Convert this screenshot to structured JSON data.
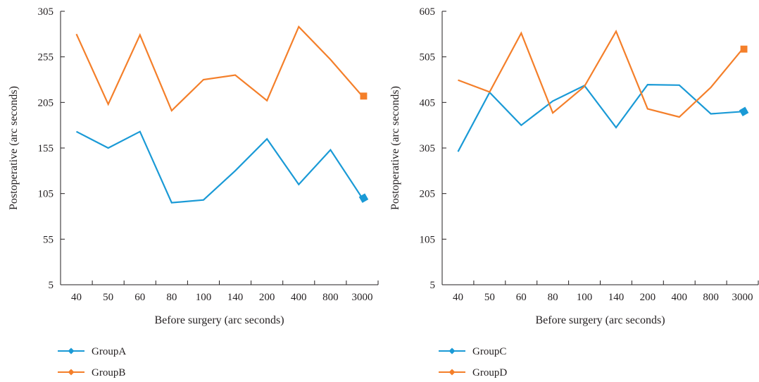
{
  "colors": {
    "series1": "#1a9ad6",
    "series2": "#f47f2a",
    "axis": "#231f20"
  },
  "chart_data": [
    {
      "type": "line",
      "categories": [
        "40",
        "50",
        "60",
        "80",
        "100",
        "140",
        "200",
        "400",
        "800",
        "3000"
      ],
      "xlabel": "Before surgery (arc seconds)",
      "ylabel": "Postoperative (arc seconds)",
      "ylim": [
        5,
        305
      ],
      "yticks": [
        "5",
        "55",
        "105",
        "155",
        "205",
        "255",
        "305"
      ],
      "grid": false,
      "legend_position": "bottom-left",
      "series": [
        {
          "name": "GroupA",
          "marker": "diamond",
          "values": [
            173,
            155,
            173,
            95,
            98,
            130,
            165,
            115,
            153,
            100
          ]
        },
        {
          "name": "GroupB",
          "marker": "diamond",
          "values": [
            280,
            203,
            279,
            196,
            230,
            235,
            207,
            288,
            252,
            212
          ]
        }
      ]
    },
    {
      "type": "line",
      "categories": [
        "40",
        "50",
        "60",
        "80",
        "100",
        "140",
        "200",
        "400",
        "800",
        "3000"
      ],
      "xlabel": "Before surgery (arc seconds)",
      "ylabel": "Postoperative (arc seconds)",
      "ylim": [
        5,
        605
      ],
      "yticks": [
        "5",
        "105",
        "205",
        "305",
        "405",
        "505",
        "605"
      ],
      "grid": false,
      "legend_position": "bottom-left",
      "series": [
        {
          "name": "GroupC",
          "marker": "diamond",
          "values": [
            297,
            427,
            355,
            408,
            442,
            350,
            444,
            443,
            380,
            385
          ]
        },
        {
          "name": "GroupD",
          "marker": "diamond",
          "values": [
            454,
            428,
            557,
            382,
            440,
            561,
            391,
            373,
            438,
            522
          ]
        }
      ]
    }
  ]
}
